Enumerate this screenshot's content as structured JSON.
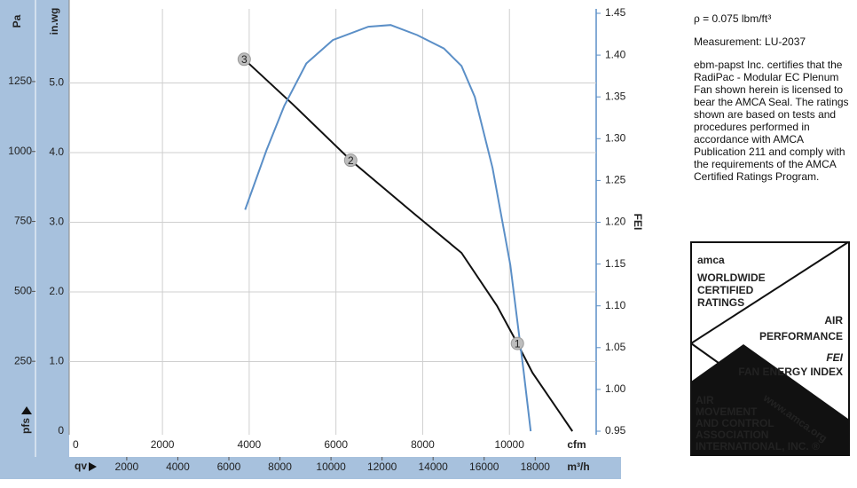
{
  "chart_data": {
    "type": "line",
    "x_label": "cfm",
    "x2_label": "m³/h",
    "y_label": "in.wg",
    "y3_label": "Pa",
    "y2_label": "FEI",
    "x_symbol": "qv",
    "y_symbol": "pfs",
    "xlim": [
      -150,
      12000
    ],
    "xticks": [
      0,
      2000,
      4000,
      6000,
      8000,
      10000
    ],
    "x2lim": [
      -255,
      20388
    ],
    "x2ticks": [
      2000,
      4000,
      6000,
      8000,
      10000,
      12000,
      14000,
      16000,
      18000
    ],
    "ylim": [
      0,
      6
    ],
    "yticks": [
      0,
      {
        "value": 1,
        "label": "1.0"
      },
      {
        "value": 2,
        "label": "2.0"
      },
      {
        "value": 3,
        "label": "3.0"
      },
      {
        "value": 4,
        "label": "4.0"
      },
      {
        "value": 5,
        "label": "5.0"
      }
    ],
    "y3lim": [
      0,
      1494
    ],
    "y3ticks": [
      250,
      500,
      750,
      1000,
      1250
    ],
    "y2lim": [
      0.95,
      1.45
    ],
    "y2ticks": [
      0.95,
      {
        "value": 1.0,
        "label": "1.00"
      },
      1.05,
      {
        "value": 1.1,
        "label": "1.10"
      },
      1.15,
      {
        "value": 1.2,
        "label": "1.20"
      },
      1.25,
      {
        "value": 1.3,
        "label": "1.30"
      },
      1.35,
      {
        "value": 1.4,
        "label": "1.40"
      },
      1.45
    ],
    "grid": true,
    "series": [
      {
        "color": "#111111",
        "x": [
          3886,
          5010,
          6340,
          7771,
          8896,
          9714,
          10184,
          10532,
          11452
        ],
        "values": [
          5.34,
          4.69,
          3.89,
          3.14,
          2.56,
          1.8,
          1.26,
          0.84,
          0
        ]
      },
      {
        "color": "#5b8fc7",
        "axis": "y2",
        "x": [
          3906,
          4397,
          4806,
          5317,
          5930,
          6748,
          7260,
          7873,
          8487,
          8896,
          9202,
          9611,
          10020,
          10327,
          10491
        ],
        "values": [
          1.215,
          1.286,
          1.339,
          1.39,
          1.418,
          1.434,
          1.436,
          1.424,
          1.408,
          1.387,
          1.35,
          1.265,
          1.149,
          1.022,
          0.95
        ]
      }
    ],
    "points": {
      "x": [
        10184,
        6340,
        3886
      ],
      "values": [
        1.26,
        3.89,
        5.34
      ],
      "labels": [
        "1",
        "2",
        "3"
      ]
    }
  },
  "notes": {
    "density": "ρ = 0.075 lbm/ft³",
    "measurement": "Measurement: LU-2037",
    "certification": "ebm-papst Inc. certifies that the RadiPac - Modular EC Plenum Fan shown herein is licensed to bear the AMCA Seal. The ratings shown are based on tests and procedures performed in accordance with AMCA Publication 211 and comply with the requirements of the AMCA Certified Ratings Program."
  },
  "seal": {
    "logo": "amca",
    "line1": "WORLDWIDE",
    "line2": "CERTIFIED",
    "line3": "RATINGS",
    "air": "AIR",
    "performance": "PERFORMANCE",
    "fei": "FEI",
    "fei_full": "FAN ENERGY INDEX",
    "assoc": [
      "AIR",
      "MOVEMENT",
      "AND CONTROL",
      "ASSOCIATION",
      "INTERNATIONAL, INC. ®"
    ],
    "url": "www.amca.org"
  }
}
